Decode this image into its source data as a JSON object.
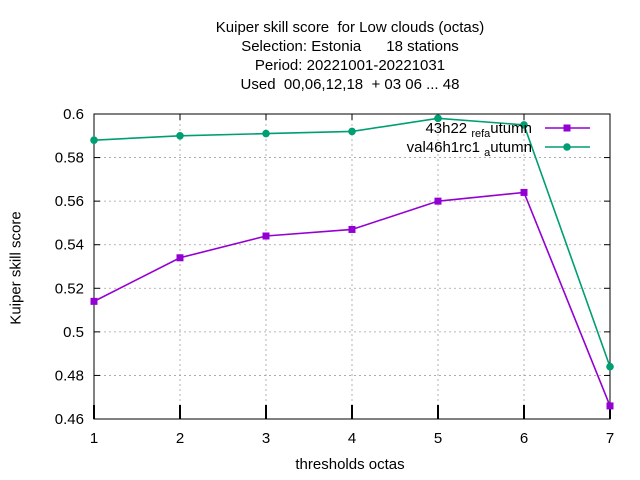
{
  "chart_data": {
    "type": "line",
    "title_lines": [
      "Kuiper skill score  for Low clouds (octas)",
      "Selection: Estonia      18 stations",
      "Period: 20221001-20221031",
      "Used  00,06,12,18  + 03 06 ... 48"
    ],
    "xlabel": "thresholds octas",
    "ylabel": "Kuiper skill score",
    "x": [
      1,
      2,
      3,
      4,
      5,
      6,
      7
    ],
    "xlim": [
      1,
      7
    ],
    "ylim": [
      0.46,
      0.6
    ],
    "yticks": [
      "0.46",
      "0.48",
      "0.5",
      "0.52",
      "0.54",
      "0.56",
      "0.58",
      "0.6"
    ],
    "xticks": [
      "1",
      "2",
      "3",
      "4",
      "5",
      "6",
      "7"
    ],
    "grid": true,
    "legend_position": "top-right",
    "series": [
      {
        "name": "43h22_ref_autumn",
        "legend_parts": [
          "43h22 ",
          "ref",
          "a",
          "utumn"
        ],
        "color": "#9400d3",
        "marker": "square",
        "values": [
          0.514,
          0.534,
          0.544,
          0.547,
          0.56,
          0.564,
          0.466
        ]
      },
      {
        "name": "val46h1rc1_autumn",
        "legend_parts": [
          "val46h1rc1 ",
          "",
          "a",
          "utumn"
        ],
        "color": "#009e73",
        "marker": "circle",
        "values": [
          0.588,
          0.59,
          0.591,
          0.592,
          0.598,
          0.595,
          0.484
        ]
      }
    ]
  }
}
